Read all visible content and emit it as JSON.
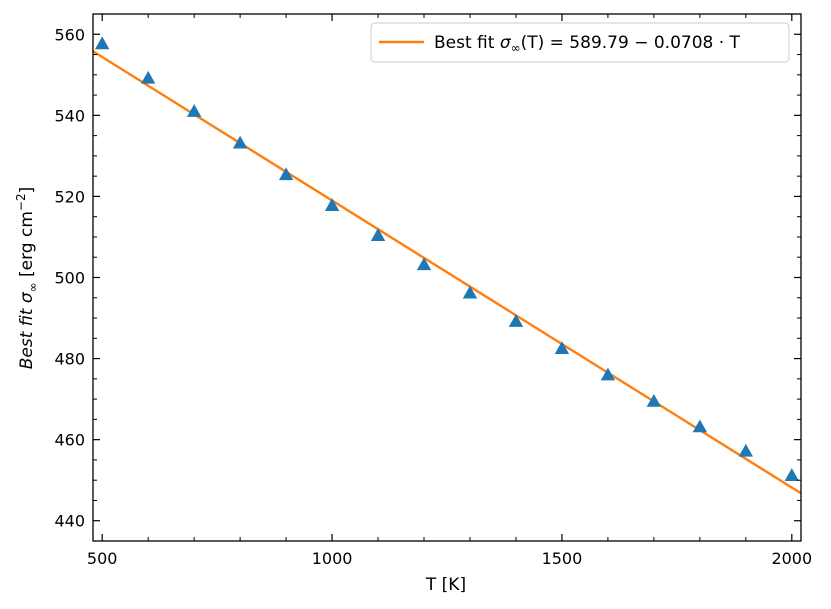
{
  "chart_data": {
    "type": "scatter",
    "xlabel": "T [K]",
    "ylabel_main": "Best fit σ",
    "ylabel_sub": "∞",
    "ylabel_unit_pre": " [erg cm",
    "ylabel_unit_sup": "−2",
    "ylabel_unit_post": "]",
    "xlim": [
      480,
      2020
    ],
    "ylim": [
      435,
      565
    ],
    "xticks": [
      500,
      1000,
      1500,
      2000
    ],
    "yticks": [
      440,
      460,
      480,
      500,
      520,
      540,
      560
    ],
    "grid": false,
    "legend_position": "top-right",
    "series": [
      {
        "kind": "scatter",
        "marker": "triangle",
        "color": "#1f77b4",
        "x": [
          500,
          600,
          700,
          800,
          900,
          1000,
          1100,
          1200,
          1300,
          1400,
          1500,
          1600,
          1700,
          1800,
          1900,
          2000
        ],
        "y": [
          557.5,
          549.0,
          540.8,
          533.0,
          525.2,
          517.6,
          510.2,
          503.0,
          496.0,
          489.0,
          482.3,
          475.8,
          469.3,
          463.0,
          457.0,
          451.0
        ]
      },
      {
        "kind": "line",
        "name": "Best fit σ∞(T) = 589.79 − 0.0708 · T",
        "color": "#ff7f0e",
        "intercept": 589.79,
        "slope": -0.0708
      }
    ],
    "legend": {
      "label_pre": "Best fit ",
      "label_sigma": "σ",
      "label_sub": "∞",
      "label_post": "(T) = 589.79 − 0.0708 · T"
    }
  }
}
